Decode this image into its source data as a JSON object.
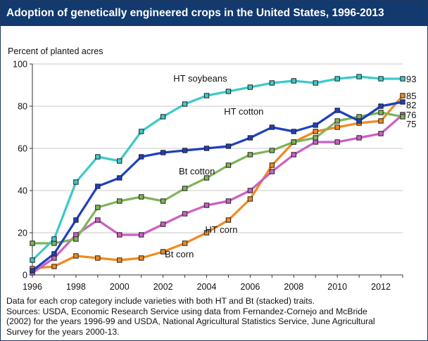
{
  "header": {
    "title": "Adoption of genetically engineered crops in the United States, 1996-2013"
  },
  "footnote": {
    "line1": "Data for each crop category include varieties with both HT and Bt (stacked) traits.",
    "sources": [
      "Sources: USDA, Economic Research Service using data from Fernandez-Cornejo and McBride",
      "(2002) for the years 1996-99 and USDA, National Agricultural Statistics Service, June Agricultural",
      "Survey for the years 2000-13."
    ]
  },
  "chart_data": {
    "type": "line",
    "title": "Adoption of genetically engineered crops in the United States, 1996-2013",
    "ylabel": "Percent of planted acres",
    "xlabel": "",
    "x": [
      1996,
      1997,
      1998,
      1999,
      2000,
      2001,
      2002,
      2003,
      2004,
      2005,
      2006,
      2007,
      2008,
      2009,
      2010,
      2011,
      2012,
      2013
    ],
    "xlim": [
      1996,
      2013
    ],
    "ylim": [
      0,
      100
    ],
    "xticks": [
      "1996",
      "1998",
      "2000",
      "2002",
      "2004",
      "2006",
      "2008",
      "2010",
      "2012"
    ],
    "yticks": [
      "0",
      "20",
      "40",
      "60",
      "80",
      "100"
    ],
    "grid": "horizontal",
    "series": [
      {
        "name": "HT soybeans",
        "color": "#3cc9c9",
        "end_label": "93",
        "values": [
          7,
          17,
          44,
          56,
          54,
          68,
          75,
          81,
          85,
          87,
          89,
          91,
          92,
          91,
          93,
          94,
          93,
          93
        ]
      },
      {
        "name": "HT cotton",
        "color": "#1f3fbf",
        "end_label": "82",
        "values": [
          2,
          10,
          26,
          42,
          46,
          56,
          58,
          59,
          60,
          61,
          65,
          70,
          68,
          71,
          78,
          73,
          80,
          82
        ]
      },
      {
        "name": "Bt cotton",
        "color": "#7fb35a",
        "end_label": "75",
        "values": [
          15,
          15,
          17,
          32,
          35,
          37,
          35,
          41,
          46,
          52,
          57,
          59,
          63,
          65,
          73,
          75,
          77,
          75
        ]
      },
      {
        "name": "Bt corn",
        "color": "#cc5fc4",
        "end_label": "76",
        "values": [
          1,
          8,
          19,
          26,
          19,
          19,
          24,
          29,
          33,
          35,
          40,
          49,
          57,
          63,
          63,
          65,
          67,
          76
        ]
      },
      {
        "name": "HT corn",
        "color": "#f08a1c",
        "end_label": "85",
        "values": [
          3,
          4,
          9,
          8,
          7,
          8,
          11,
          15,
          20,
          26,
          36,
          52,
          63,
          68,
          70,
          72,
          73,
          85
        ]
      }
    ]
  }
}
